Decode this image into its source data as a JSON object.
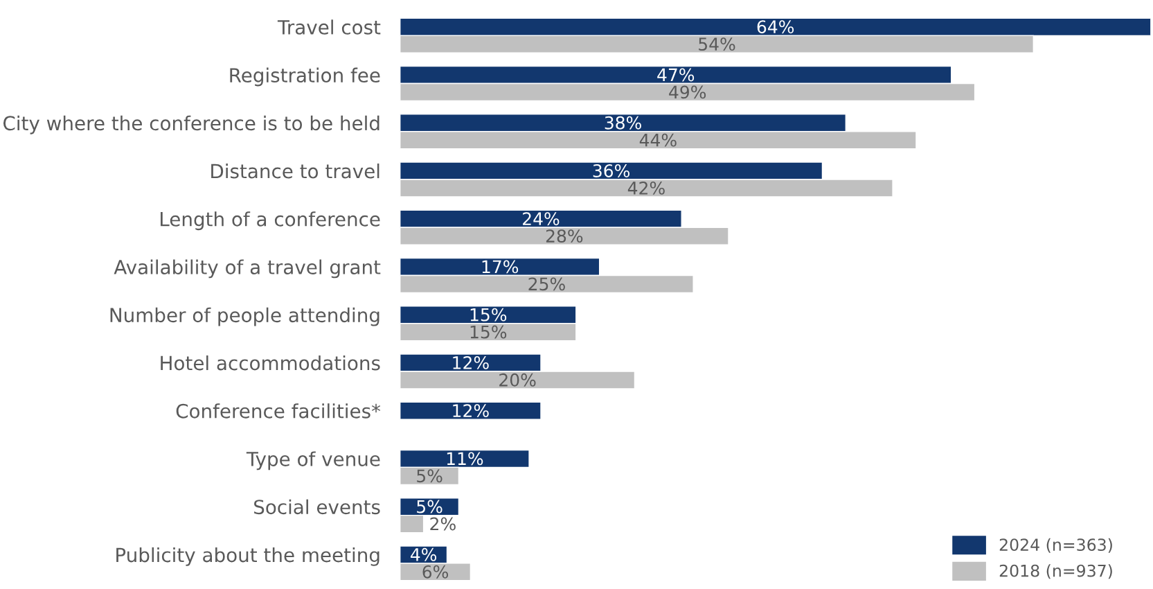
{
  "chart_data": {
    "type": "bar",
    "orientation": "horizontal",
    "categories": [
      "Travel cost",
      "Registration fee",
      "City where the conference is to be held",
      "Distance to travel",
      "Length of a conference",
      "Availability of a travel grant",
      "Number of people attending",
      "Hotel accommodations",
      "Conference facilities*",
      "Type of venue",
      "Social events",
      "Publicity about the meeting"
    ],
    "series": [
      {
        "name": "2024 (n=363)",
        "color": "#12376e",
        "values": [
          64,
          47,
          38,
          36,
          24,
          17,
          15,
          12,
          12,
          11,
          5,
          4
        ],
        "value_labels": [
          "64%",
          "47%",
          "38%",
          "36%",
          "24%",
          "17%",
          "15%",
          "12%",
          "12%",
          "11%",
          "5%",
          "4%"
        ]
      },
      {
        "name": "2018 (n=937)",
        "color": "#c0c0c0",
        "values": [
          54,
          49,
          44,
          42,
          28,
          25,
          15,
          20,
          null,
          5,
          2,
          6
        ],
        "value_labels": [
          "54%",
          "49%",
          "44%",
          "42%",
          "28%",
          "25%",
          "15%",
          "20%",
          null,
          "5%",
          "2%",
          "6%"
        ]
      }
    ],
    "xlim": [
      0,
      64
    ],
    "tick_labels": "y",
    "grid": false,
    "legend": "bottom right"
  }
}
